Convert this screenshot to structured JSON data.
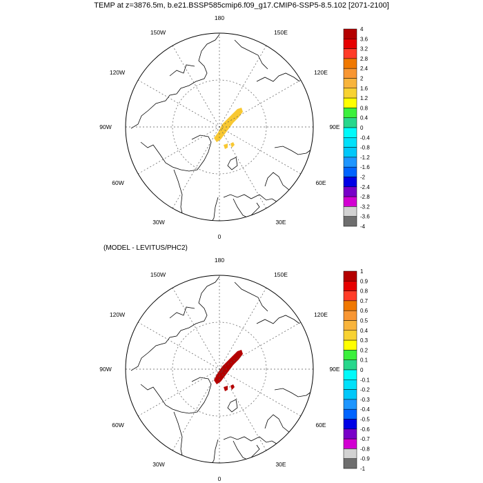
{
  "title": "TEMP at z=3876.5m, b.e21.BSSP585cmip6.f09_g17.CMIP6-SSP5-8.5.102 [2071-2100]",
  "panels": [
    {
      "subtitle": "",
      "lon_labels": {
        "top": "180",
        "bottom": "0",
        "left_top": "150W",
        "left_upper": "120W",
        "left_mid": "90W",
        "left_lower": "60W",
        "left_bottom": "30W",
        "right_top": "150E",
        "right_upper": "120E",
        "right_mid": "90E",
        "right_lower": "60E",
        "right_bottom": "30E"
      },
      "colorbar_labels": [
        "4",
        "3.6",
        "3.2",
        "2.8",
        "2.4",
        "2",
        "1.6",
        "1.2",
        "0.8",
        "0.4",
        "0",
        "-0.4",
        "-0.8",
        "-1.2",
        "-1.6",
        "-2",
        "-2.4",
        "-2.8",
        "-3.2",
        "-3.6",
        "-4"
      ],
      "anomaly_color": "#F8C832"
    },
    {
      "subtitle": "(MODEL - LEVITUS/PHC2)",
      "lon_labels": {
        "top": "180",
        "bottom": "0",
        "left_top": "150W",
        "left_upper": "120W",
        "left_mid": "90W",
        "left_lower": "60W",
        "left_bottom": "30W",
        "right_top": "150E",
        "right_upper": "120E",
        "right_mid": "90E",
        "right_lower": "60E",
        "right_bottom": "30E"
      },
      "colorbar_labels": [
        "1",
        "0.9",
        "0.8",
        "0.7",
        "0.6",
        "0.5",
        "0.4",
        "0.3",
        "0.2",
        "0.1",
        "0",
        "-0.1",
        "-0.2",
        "-0.3",
        "-0.4",
        "-0.5",
        "-0.6",
        "-0.7",
        "-0.8",
        "-0.9",
        "-1"
      ],
      "anomaly_color": "#B40000"
    }
  ],
  "colorbar_colors": [
    "#B40000",
    "#E60000",
    "#FF3C28",
    "#F07800",
    "#F89632",
    "#F8B43C",
    "#F8D232",
    "#FFFF00",
    "#3CF03C",
    "#28D78C",
    "#00FAFA",
    "#00E1FA",
    "#00C8FA",
    "#1E96FF",
    "#0064FF",
    "#0000E6",
    "#7800C8",
    "#D200D2",
    "#D2D2D2",
    "#6E6E6E"
  ]
}
